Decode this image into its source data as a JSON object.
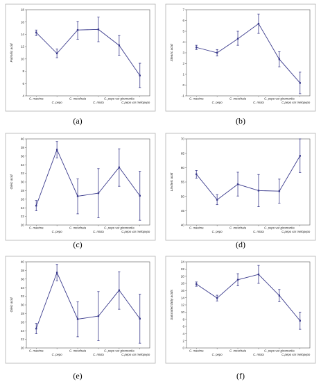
{
  "chart_data": [
    {
      "type": "line",
      "panel_label": "(a)",
      "title": "",
      "xlabel": "",
      "ylabel": "Palmitic acid",
      "ylim": [
        4,
        18
      ],
      "yticks": [
        4,
        6,
        8,
        10,
        12,
        14,
        16,
        18
      ],
      "grid": false,
      "categories": [
        "C. maxima",
        "C. pepo",
        "C. moschata",
        "C. mixta",
        "C. pepo var giromontia",
        "C.pepo var melopepo"
      ],
      "series": [
        {
          "values": [
            14.3,
            10.9,
            14.7,
            14.8,
            12.2,
            7.3
          ],
          "err_low": [
            13.8,
            10.2,
            13.2,
            12.8,
            10.6,
            5.3
          ],
          "err_high": [
            14.7,
            11.6,
            16.1,
            16.8,
            13.8,
            9.3
          ]
        }
      ]
    },
    {
      "type": "line",
      "panel_label": "(b)",
      "title": "",
      "xlabel": "",
      "ylabel": "Stearic acid",
      "ylim": [
        -1,
        7
      ],
      "yticks": [
        -1,
        0,
        1,
        2,
        3,
        4,
        5,
        6,
        7
      ],
      "grid": false,
      "categories": [
        "C. maxima",
        "C. pepo",
        "C. moschata",
        "C. mixta",
        "C. pepo var giromontia",
        "C.pepo var melopepo"
      ],
      "series": [
        {
          "values": [
            3.5,
            3.0,
            4.3,
            5.7,
            2.4,
            0.2
          ],
          "err_low": [
            3.3,
            2.7,
            3.7,
            4.8,
            1.7,
            -0.8
          ],
          "err_high": [
            3.7,
            3.3,
            5.0,
            6.6,
            3.1,
            1.2
          ]
        }
      ]
    },
    {
      "type": "line",
      "panel_label": "(c)",
      "title": "",
      "xlabel": "",
      "ylabel": "Oleic acid",
      "ylim": [
        20,
        40
      ],
      "yticks": [
        20,
        22,
        24,
        26,
        28,
        30,
        32,
        34,
        36,
        38,
        40
      ],
      "grid": false,
      "categories": [
        "C. maxima",
        "C. pepo",
        "C. moschata",
        "C. mixta",
        "C. pepo var giromontia",
        "C.pepo var melopepo"
      ],
      "series": [
        {
          "values": [
            24.5,
            37.5,
            26.7,
            27.4,
            33.4,
            26.8
          ],
          "err_low": [
            23.3,
            35.6,
            22.6,
            21.7,
            29.0,
            21.1
          ],
          "err_high": [
            25.7,
            39.4,
            30.7,
            33.1,
            37.7,
            32.5
          ]
        }
      ]
    },
    {
      "type": "line",
      "panel_label": "(d)",
      "title": "",
      "xlabel": "",
      "ylabel": "Linoleic acid",
      "ylim": [
        40,
        70
      ],
      "yticks": [
        40,
        45,
        50,
        55,
        60,
        65,
        70
      ],
      "grid": false,
      "categories": [
        "C. maxima",
        "C. pepo",
        "C. moschata",
        "C. mixta",
        "C. pepo var giromontia",
        "C.pepo var melopepo"
      ],
      "series": [
        {
          "values": [
            57.7,
            48.8,
            54.2,
            52.0,
            51.8,
            64.1
          ],
          "err_low": [
            56.3,
            47.1,
            50.1,
            46.4,
            47.6,
            58.3
          ],
          "err_high": [
            59.0,
            50.6,
            58.4,
            57.6,
            56.0,
            70.0
          ]
        }
      ]
    },
    {
      "type": "line",
      "panel_label": "(e)",
      "title": "",
      "xlabel": "",
      "ylabel": "Oleic acid",
      "ylim": [
        20,
        40
      ],
      "yticks": [
        20,
        22,
        24,
        26,
        28,
        30,
        32,
        34,
        36,
        38,
        40
      ],
      "grid": false,
      "categories": [
        "C. maxima",
        "C. pepo",
        "C. moschata",
        "C. mixta",
        "C. pepo var giromontia",
        "C.pepo var melopepo"
      ],
      "series": [
        {
          "values": [
            24.5,
            37.5,
            26.7,
            27.4,
            33.4,
            26.8
          ],
          "err_low": [
            23.3,
            35.6,
            22.6,
            21.7,
            29.0,
            21.1
          ],
          "err_high": [
            25.7,
            39.4,
            30.7,
            33.1,
            37.7,
            32.5
          ]
        }
      ]
    },
    {
      "type": "line",
      "panel_label": "(f)",
      "title": "",
      "xlabel": "",
      "ylabel": "Saturated fatty acids",
      "ylim": [
        0,
        24
      ],
      "yticks": [
        0,
        2,
        4,
        6,
        8,
        10,
        12,
        14,
        16,
        18,
        20,
        22,
        24
      ],
      "grid": false,
      "categories": [
        "C. maxima",
        "C. pepo",
        "C. moschata",
        "C. mixta",
        "C. pepo var giromontia",
        "C.pepo var melopepo"
      ],
      "series": [
        {
          "values": [
            17.8,
            13.9,
            19.0,
            20.5,
            14.6,
            7.6
          ],
          "err_low": [
            17.2,
            13.1,
            17.3,
            18.0,
            12.9,
            5.2
          ],
          "err_high": [
            18.4,
            14.7,
            20.7,
            23.0,
            16.3,
            10.0
          ]
        }
      ]
    }
  ],
  "colors": {
    "line": "#3a3a8c",
    "frame": "#b0b0b0",
    "axis": "#555555"
  }
}
